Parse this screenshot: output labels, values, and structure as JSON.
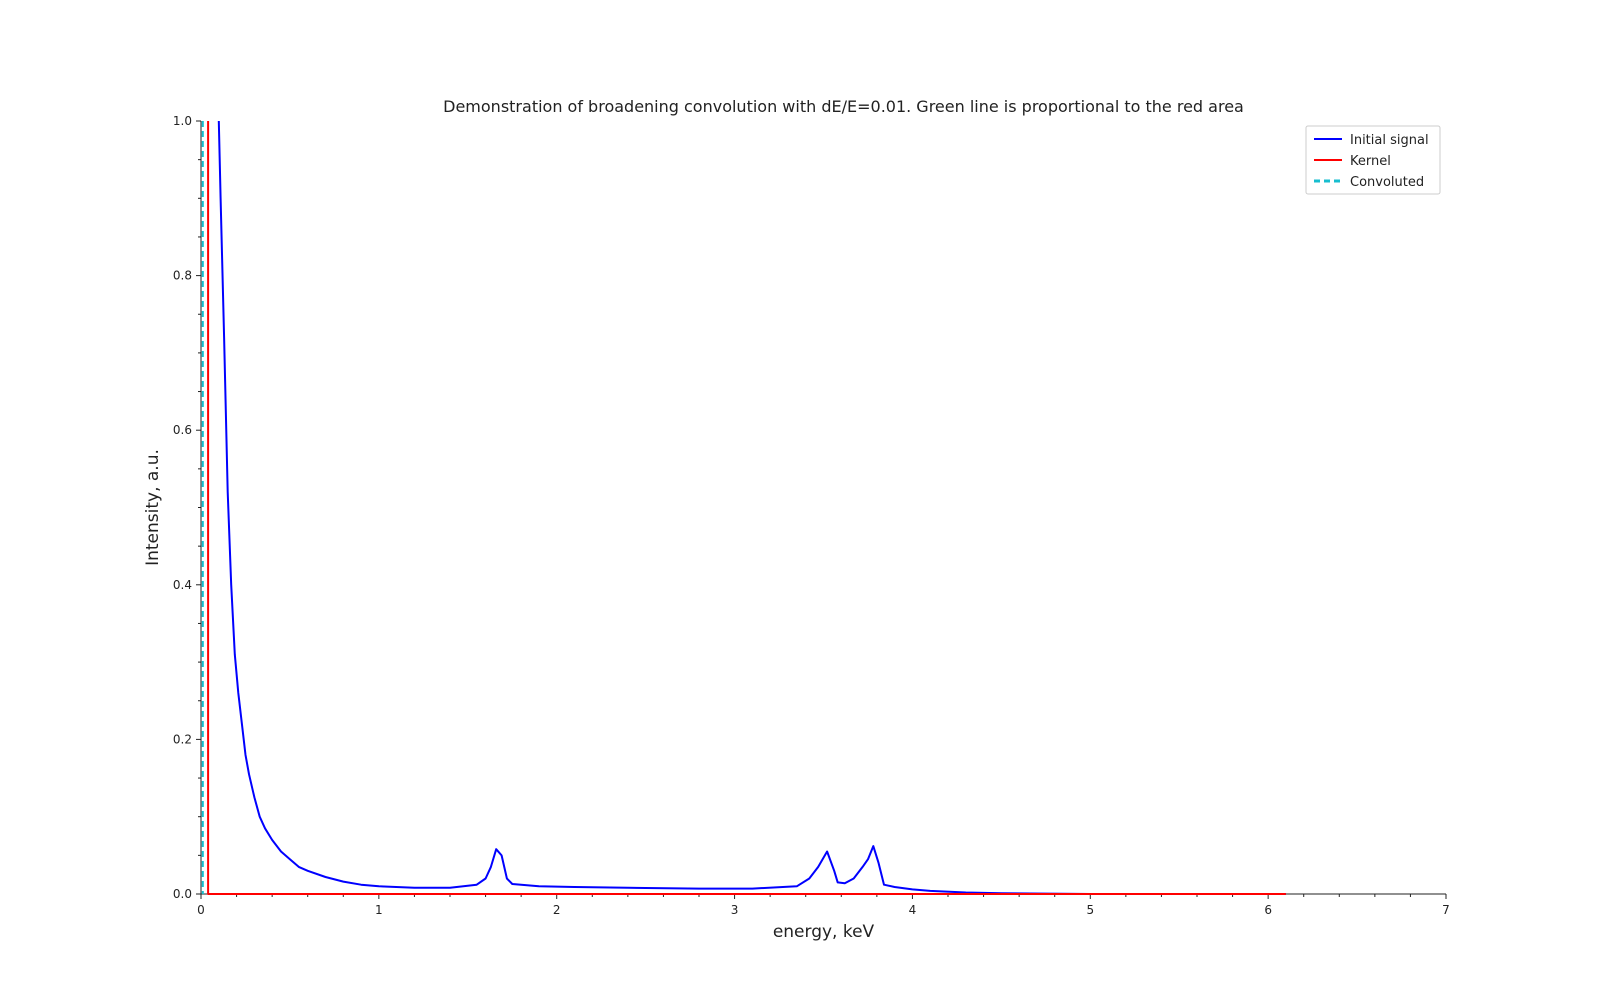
{
  "chart_data": {
    "type": "line",
    "title": "Demonstration of broadening convolution with dE/E=0.01. Green line is proportional to the red area",
    "xlabel": "energy, keV",
    "ylabel": "Intensity, a.u.",
    "xlim": [
      0,
      7
    ],
    "ylim": [
      0,
      1.0
    ],
    "x_ticks": [
      "0",
      "1",
      "2",
      "3",
      "4",
      "5",
      "6",
      "7"
    ],
    "y_ticks": [
      "0.0",
      "0.2",
      "0.4",
      "0.6",
      "0.8",
      "1.0"
    ],
    "grid": false,
    "legend_position": "top-right",
    "series": [
      {
        "name": "Initial signal",
        "color": "#0000ff",
        "style": "solid",
        "points": [
          [
            0.1,
            1.0
          ],
          [
            0.11,
            0.9
          ],
          [
            0.13,
            0.72
          ],
          [
            0.15,
            0.52
          ],
          [
            0.17,
            0.4
          ],
          [
            0.19,
            0.31
          ],
          [
            0.21,
            0.26
          ],
          [
            0.23,
            0.22
          ],
          [
            0.25,
            0.18
          ],
          [
            0.27,
            0.155
          ],
          [
            0.3,
            0.125
          ],
          [
            0.33,
            0.1
          ],
          [
            0.36,
            0.085
          ],
          [
            0.4,
            0.07
          ],
          [
            0.45,
            0.055
          ],
          [
            0.5,
            0.045
          ],
          [
            0.55,
            0.035
          ],
          [
            0.6,
            0.03
          ],
          [
            0.7,
            0.022
          ],
          [
            0.8,
            0.016
          ],
          [
            0.9,
            0.012
          ],
          [
            1.0,
            0.01
          ],
          [
            1.2,
            0.008
          ],
          [
            1.4,
            0.008
          ],
          [
            1.55,
            0.012
          ],
          [
            1.6,
            0.02
          ],
          [
            1.63,
            0.035
          ],
          [
            1.66,
            0.058
          ],
          [
            1.69,
            0.05
          ],
          [
            1.72,
            0.02
          ],
          [
            1.75,
            0.013
          ],
          [
            1.9,
            0.01
          ],
          [
            2.1,
            0.009
          ],
          [
            2.4,
            0.008
          ],
          [
            2.8,
            0.007
          ],
          [
            3.1,
            0.007
          ],
          [
            3.35,
            0.01
          ],
          [
            3.42,
            0.02
          ],
          [
            3.47,
            0.035
          ],
          [
            3.52,
            0.055
          ],
          [
            3.56,
            0.03
          ],
          [
            3.58,
            0.015
          ],
          [
            3.62,
            0.014
          ],
          [
            3.67,
            0.02
          ],
          [
            3.72,
            0.035
          ],
          [
            3.75,
            0.045
          ],
          [
            3.78,
            0.062
          ],
          [
            3.81,
            0.04
          ],
          [
            3.84,
            0.012
          ],
          [
            3.9,
            0.009
          ],
          [
            4.0,
            0.006
          ],
          [
            4.1,
            0.004
          ],
          [
            4.3,
            0.002
          ],
          [
            4.5,
            0.001
          ],
          [
            5.0,
            0.0
          ],
          [
            6.1,
            0.0
          ]
        ]
      },
      {
        "name": "Kernel",
        "color": "#ff0000",
        "style": "solid",
        "points": [
          [
            0.04,
            1.0
          ],
          [
            0.04,
            0.0
          ],
          [
            6.1,
            0.0
          ]
        ]
      },
      {
        "name": "Convoluted",
        "color": "#17becf",
        "style": "dashed",
        "points": [
          [
            0.01,
            1.0
          ],
          [
            0.01,
            0.0
          ]
        ]
      }
    ]
  }
}
